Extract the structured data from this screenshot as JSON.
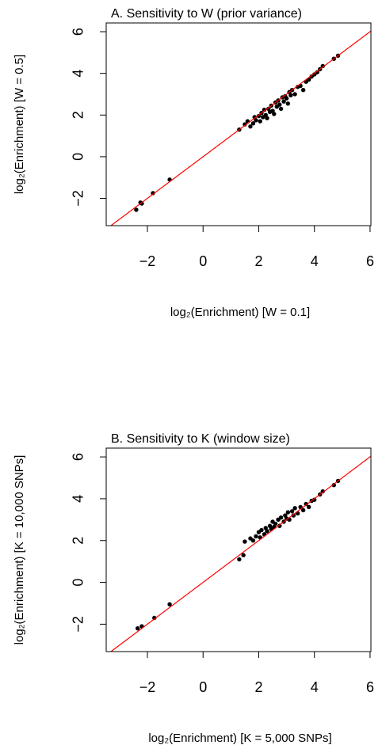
{
  "chart_data": [
    {
      "type": "scatter",
      "title": "A. Sensitivity to W (prior variance)",
      "x_label": "log₂(Enrichment) [W = 0.1]",
      "y_label": "log₂(Enrichment) [W = 0.5]",
      "color": "#000000",
      "identity_line_color": "#ff0000",
      "x": [
        -2.4,
        -2.25,
        -2.2,
        -1.8,
        -1.2,
        1.3,
        1.5,
        1.6,
        1.7,
        1.8,
        1.85,
        1.9,
        2.0,
        2.05,
        2.1,
        2.15,
        2.2,
        2.25,
        2.3,
        2.35,
        2.4,
        2.45,
        2.5,
        2.55,
        2.6,
        2.65,
        2.7,
        2.75,
        2.8,
        2.85,
        2.9,
        2.95,
        3.0,
        3.05,
        3.1,
        3.15,
        3.2,
        3.3,
        3.4,
        3.5,
        3.6,
        3.7,
        3.8,
        3.9,
        4.0,
        4.1,
        4.2,
        4.3,
        4.7,
        4.85
      ],
      "values": [
        -2.55,
        -2.2,
        -2.25,
        -1.75,
        -1.1,
        1.3,
        1.55,
        1.7,
        1.45,
        1.6,
        1.9,
        1.75,
        1.95,
        1.7,
        2.1,
        1.9,
        2.25,
        2.0,
        1.85,
        2.3,
        2.15,
        2.45,
        2.2,
        2.05,
        2.6,
        2.4,
        2.7,
        2.5,
        2.3,
        2.85,
        2.65,
        2.9,
        2.8,
        2.55,
        3.1,
        2.95,
        3.2,
        3.0,
        3.35,
        3.4,
        3.2,
        3.6,
        3.7,
        3.85,
        3.95,
        4.05,
        4.2,
        4.35,
        4.7,
        4.85
      ],
      "xlim": [
        -3.48,
        6.03
      ],
      "ylim": [
        -3.31,
        6.42
      ],
      "xticks": [
        {
          "value": -2,
          "label": "−2"
        },
        0,
        2,
        4,
        6
      ],
      "yticks": [
        {
          "value": -2,
          "label": "−2"
        },
        0,
        2,
        4,
        6
      ]
    },
    {
      "type": "scatter",
      "title": "B. Sensitivity to K (window size)",
      "x_label": "log₂(Enrichment) [K = 5,000 SNPs]",
      "y_label": "log₂(Enrichment) [K = 10,000 SNPs]",
      "color": "#000000",
      "identity_line_color": "#ff0000",
      "x": [
        -2.35,
        -2.2,
        -1.75,
        -1.2,
        1.3,
        1.45,
        1.5,
        1.7,
        1.8,
        1.9,
        2.0,
        2.05,
        2.1,
        2.2,
        2.25,
        2.3,
        2.4,
        2.45,
        2.5,
        2.55,
        2.6,
        2.7,
        2.75,
        2.8,
        2.9,
        2.95,
        3.0,
        3.05,
        3.1,
        3.2,
        3.25,
        3.3,
        3.4,
        3.5,
        3.6,
        3.7,
        3.8,
        3.9,
        4.0,
        4.2,
        4.3,
        4.7,
        4.85
      ],
      "values": [
        -2.2,
        -2.1,
        -1.7,
        -1.05,
        1.1,
        1.3,
        1.95,
        2.1,
        2.0,
        2.2,
        2.4,
        2.15,
        2.5,
        2.3,
        2.6,
        2.45,
        2.7,
        2.55,
        2.9,
        2.65,
        2.8,
        3.0,
        2.7,
        3.1,
        2.9,
        3.2,
        3.05,
        3.35,
        3.0,
        3.4,
        3.2,
        3.55,
        3.3,
        3.6,
        3.45,
        3.75,
        3.6,
        3.9,
        3.95,
        4.2,
        4.35,
        4.65,
        4.85
      ],
      "xlim": [
        -3.48,
        6.03
      ],
      "ylim": [
        -3.31,
        6.42
      ],
      "xticks": [
        {
          "value": -2,
          "label": "−2"
        },
        0,
        2,
        4,
        6
      ],
      "yticks": [
        {
          "value": -2,
          "label": "−2"
        },
        0,
        2,
        4,
        6
      ]
    }
  ]
}
